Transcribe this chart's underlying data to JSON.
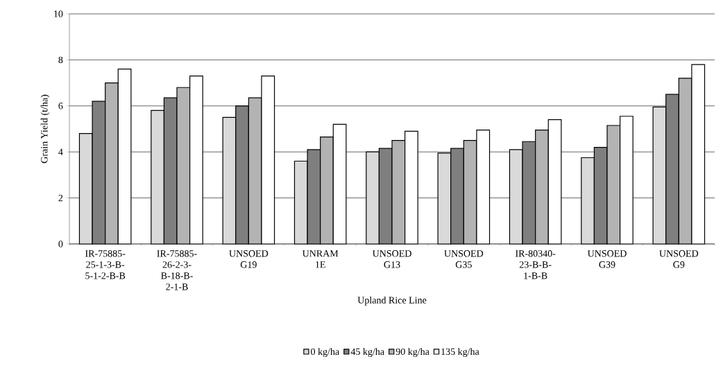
{
  "chart_data": {
    "type": "bar",
    "xlabel": "Upland Rice Line",
    "ylabel": "Grain Yield (t/ha)",
    "categories": [
      "IR-75885-25-1-3-B-5-1-2-B-B",
      "IR-75885-26-2-3-B-18-B-2-1-B",
      "UNSOED G19",
      "UNRAM 1E",
      "UNSOED G13",
      "UNSOED G35",
      "IR-80340-23-B-B-1-B-B",
      "UNSOED G39",
      "UNSOED G9"
    ],
    "series": [
      {
        "name": "0 kg/ha",
        "color": "#d9d9d9",
        "values": [
          4.8,
          5.8,
          5.5,
          3.6,
          4.0,
          3.95,
          4.1,
          3.75,
          5.95
        ]
      },
      {
        "name": "45 kg/ha",
        "color": "#7f7f7f",
        "values": [
          6.2,
          6.35,
          6.0,
          4.1,
          4.15,
          4.15,
          4.45,
          4.2,
          6.5
        ]
      },
      {
        "name": "90 kg/ha",
        "color": "#b3b3b3",
        "values": [
          7.0,
          6.8,
          6.35,
          4.65,
          4.5,
          4.5,
          4.95,
          5.15,
          7.2
        ]
      },
      {
        "name": "135 kg/ha",
        "color": "#ffffff",
        "values": [
          7.6,
          7.3,
          7.3,
          5.2,
          4.9,
          4.95,
          5.4,
          5.55,
          7.8
        ]
      }
    ],
    "ylim": [
      0,
      10
    ],
    "yticks": [
      0,
      2,
      4,
      6,
      8,
      10
    ],
    "grid": "y",
    "legend": "bottom"
  }
}
